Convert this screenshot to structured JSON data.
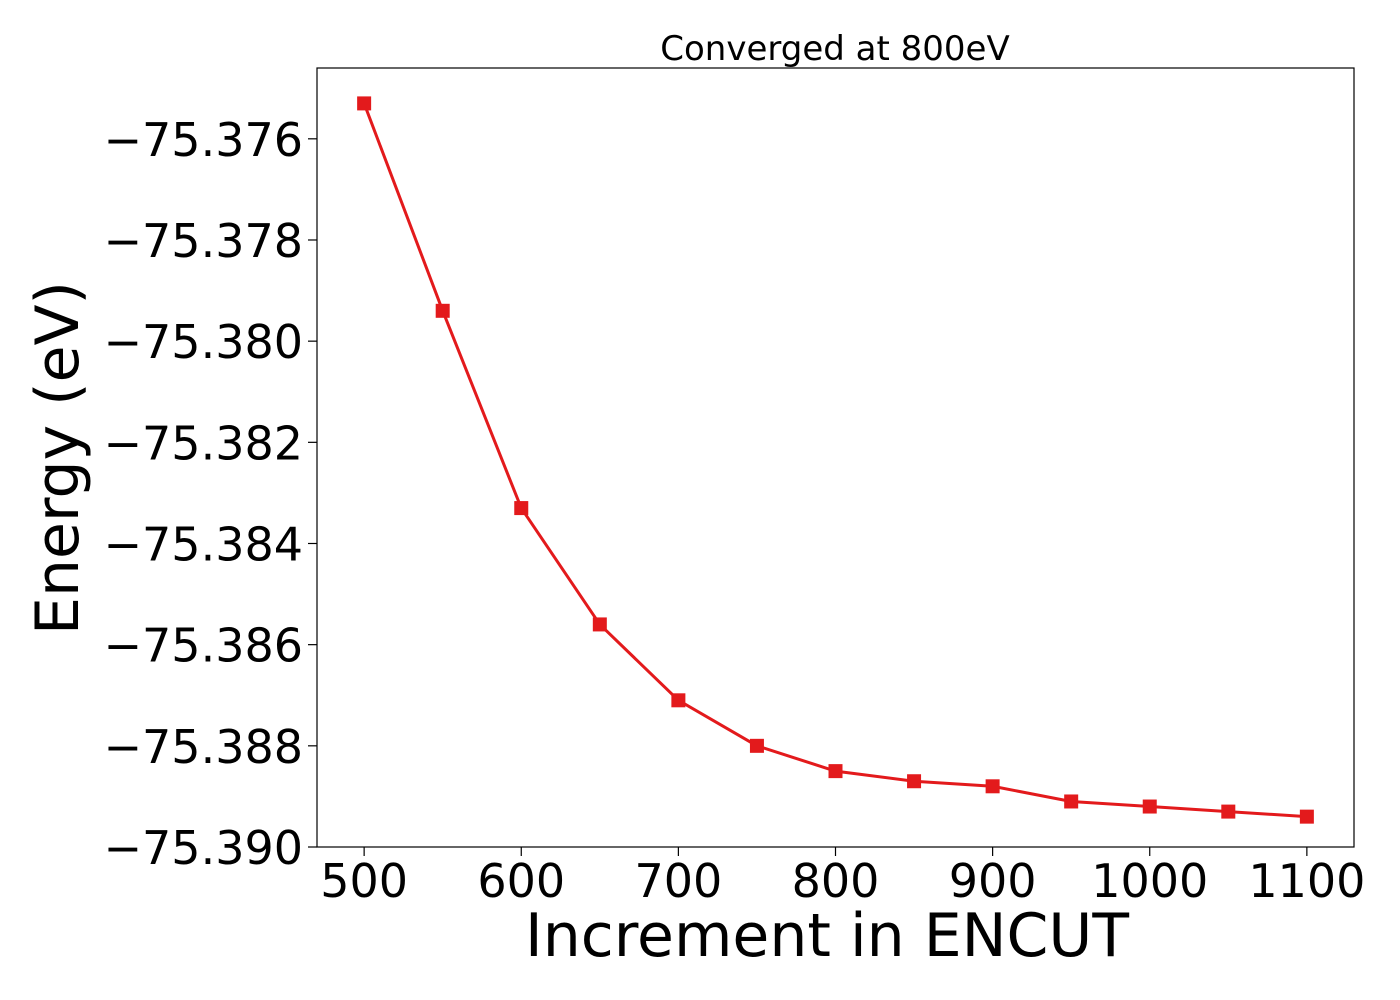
{
  "chart_data": {
    "type": "line",
    "title": "Converged at 800eV",
    "xlabel": "Increment in ENCUT",
    "ylabel": "Energy (eV)",
    "x": [
      500,
      550,
      600,
      650,
      700,
      750,
      800,
      850,
      900,
      950,
      1000,
      1050,
      1100
    ],
    "series": [
      {
        "values": [
          -75.3753,
          -75.3794,
          -75.3833,
          -75.3856,
          -75.3871,
          -75.388,
          -75.3885,
          -75.3887,
          -75.3888,
          -75.3891,
          -75.3892,
          -75.3893,
          -75.3894
        ],
        "color": "#e31a1c",
        "marker": "square"
      }
    ],
    "xlim": [
      470,
      1130
    ],
    "ylim": [
      -75.39,
      -75.3746
    ],
    "xticks": [
      500,
      600,
      700,
      800,
      900,
      1000,
      1100
    ],
    "xtick_labels": [
      "500",
      "600",
      "700",
      "800",
      "900",
      "1000",
      "1100"
    ],
    "yticks": [
      -75.376,
      -75.378,
      -75.38,
      -75.382,
      -75.384,
      -75.386,
      -75.388,
      -75.39
    ],
    "ytick_labels": [
      "−75.376",
      "−75.378",
      "−75.380",
      "−75.382",
      "−75.384",
      "−75.386",
      "−75.388",
      "−75.390"
    ],
    "grid": false,
    "legend": "none"
  }
}
